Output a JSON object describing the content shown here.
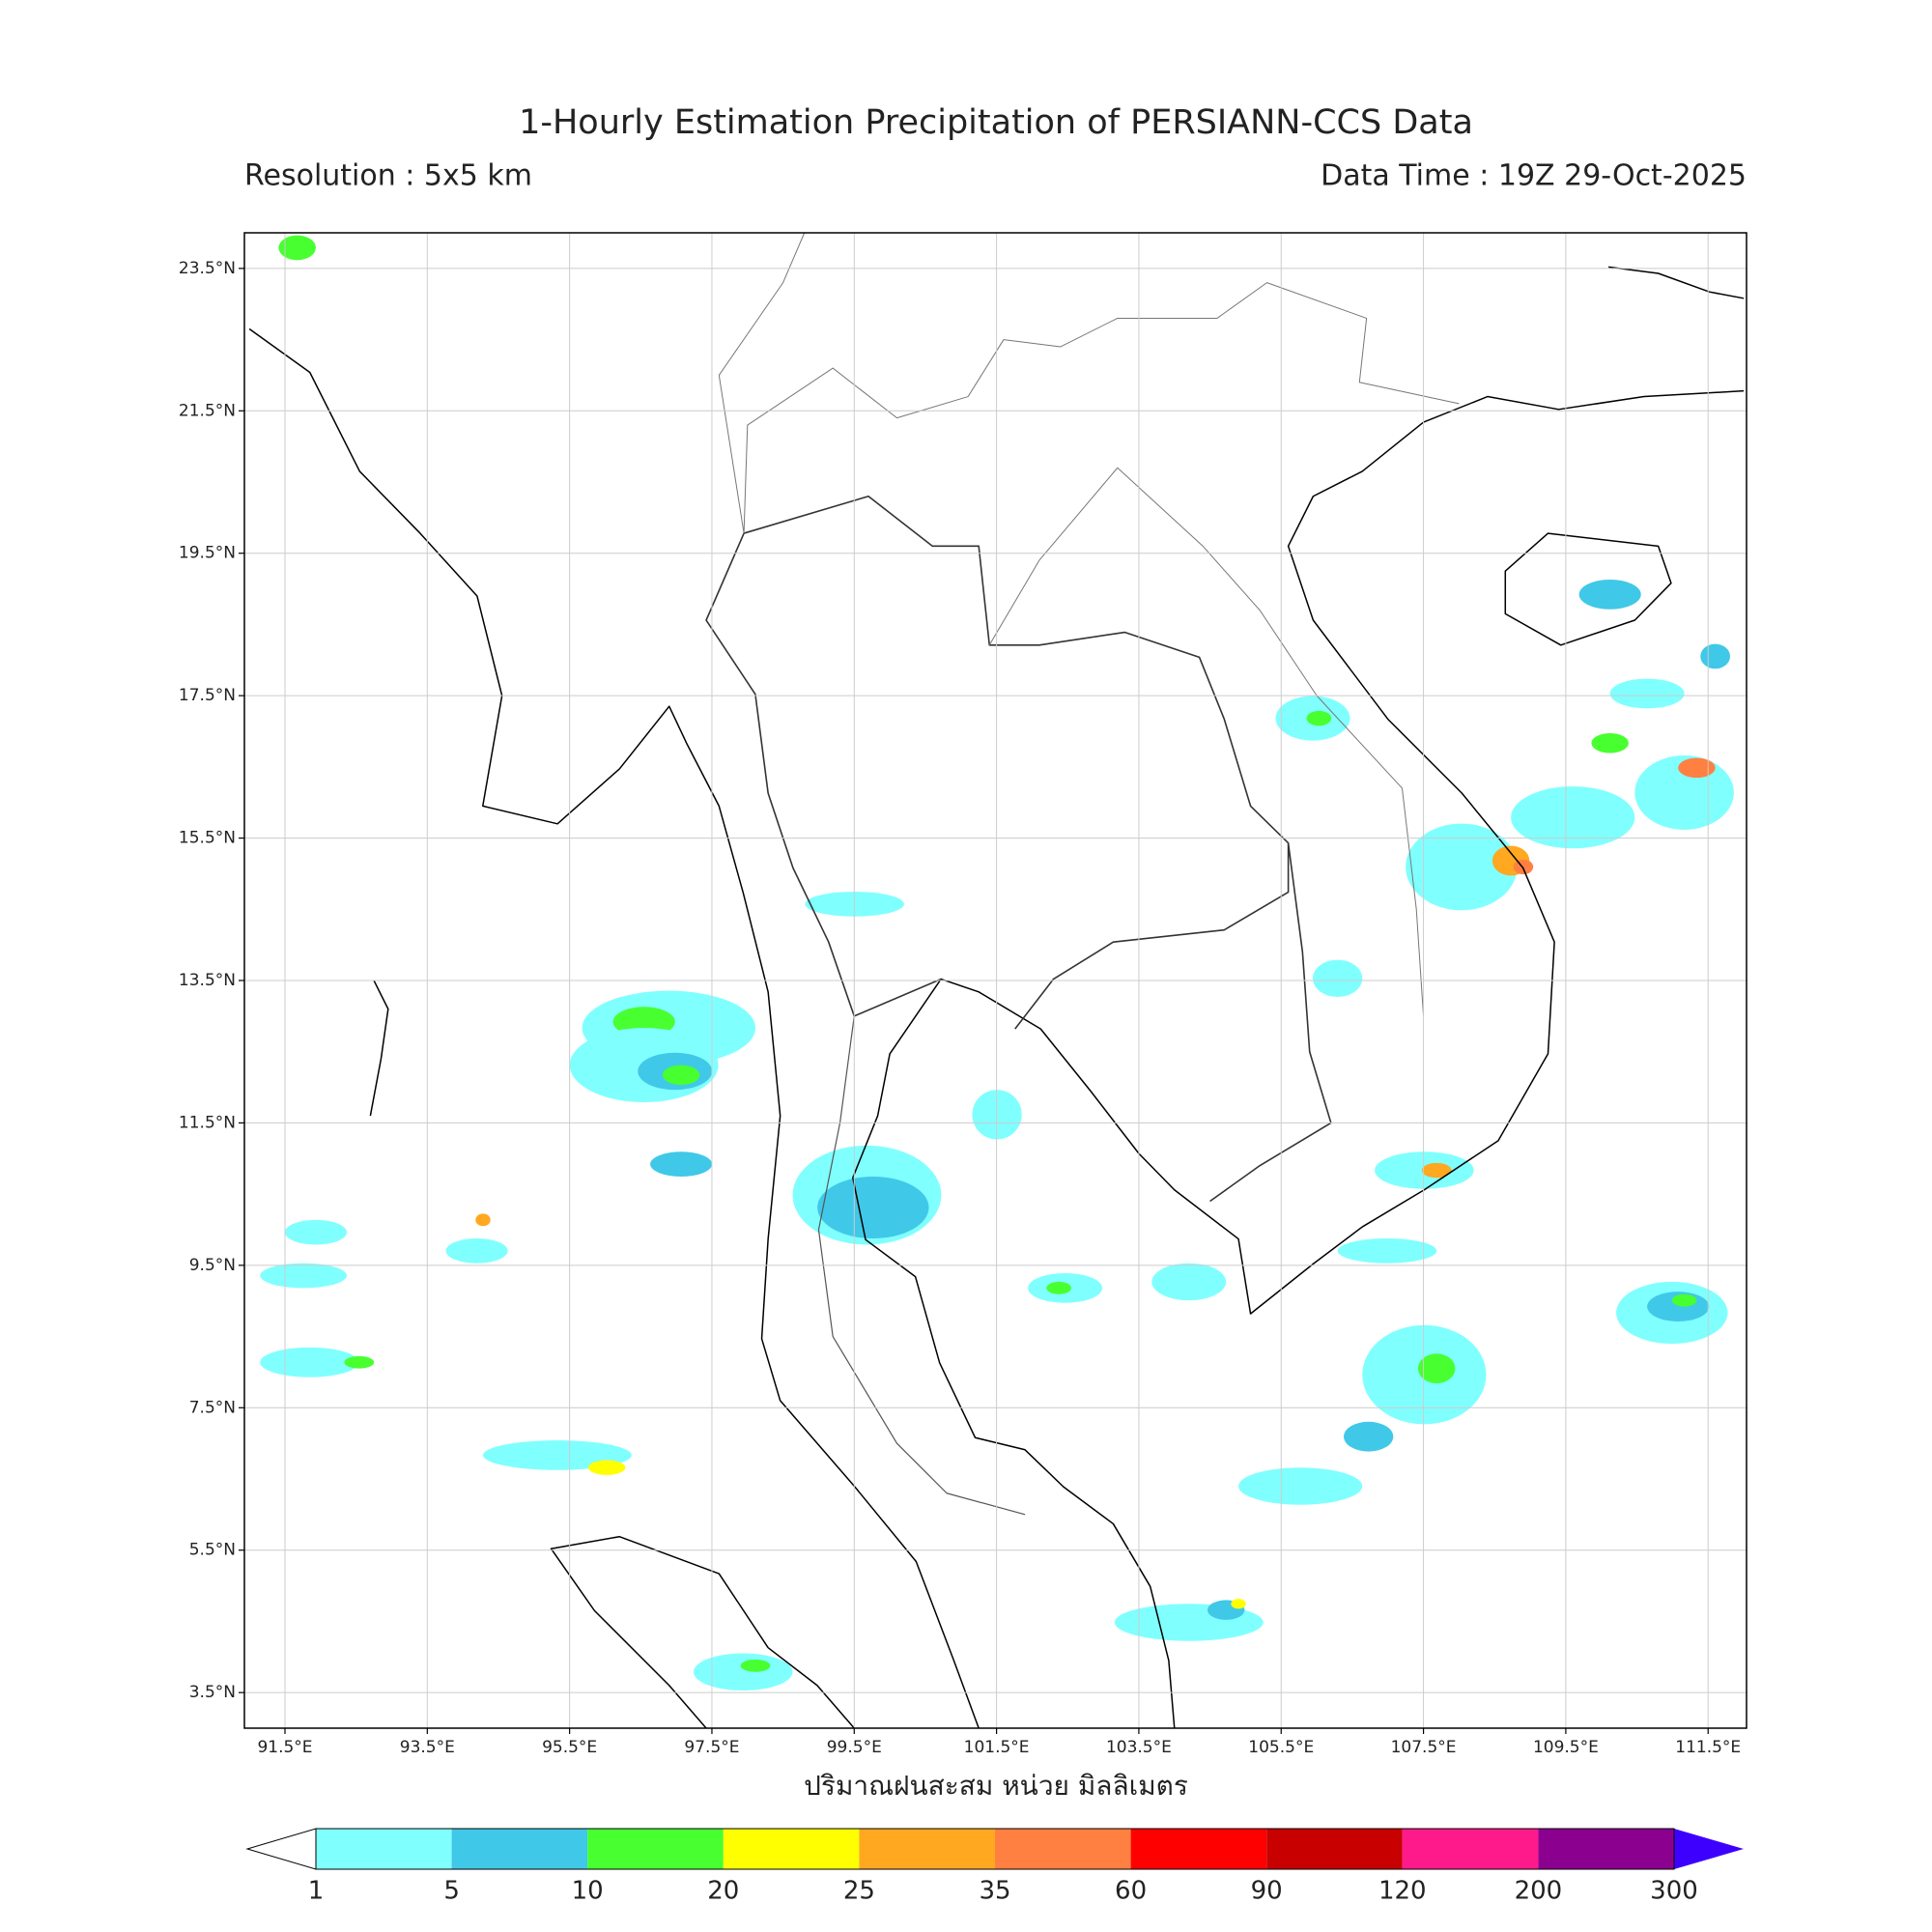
{
  "map": {
    "title": "1-Hourly Estimation Precipitation of PERSIANN-CCS Data",
    "resolution": "Resolution : 5x5 km",
    "data_time": "Data Time : 19Z 29-Oct-2025",
    "xlabel": "ปริมาณฝนสะสม หน่วย มิลลิเมตร",
    "xlim": [
      90.93,
      112.04
    ],
    "ylim": [
      3.0,
      24.0
    ],
    "grid": true,
    "xticks": [
      {
        "value": 91.5,
        "label": "91.5°E"
      },
      {
        "value": 93.5,
        "label": "93.5°E"
      },
      {
        "value": 95.5,
        "label": "95.5°E"
      },
      {
        "value": 97.5,
        "label": "97.5°E"
      },
      {
        "value": 99.5,
        "label": "99.5°E"
      },
      {
        "value": 101.5,
        "label": "101.5°E"
      },
      {
        "value": 103.5,
        "label": "103.5°E"
      },
      {
        "value": 105.5,
        "label": "105.5°E"
      },
      {
        "value": 107.5,
        "label": "107.5°E"
      },
      {
        "value": 109.5,
        "label": "109.5°E"
      },
      {
        "value": 111.5,
        "label": "111.5°E"
      }
    ],
    "yticks": [
      {
        "value": 3.5,
        "label": "3.5°N"
      },
      {
        "value": 5.5,
        "label": "5.5°N"
      },
      {
        "value": 7.5,
        "label": "7.5°N"
      },
      {
        "value": 9.5,
        "label": "9.5°N"
      },
      {
        "value": 11.5,
        "label": "11.5°N"
      },
      {
        "value": 13.5,
        "label": "13.5°N"
      },
      {
        "value": 15.5,
        "label": "15.5°N"
      },
      {
        "value": 17.5,
        "label": "17.5°N"
      },
      {
        "value": 19.5,
        "label": "19.5°N"
      },
      {
        "value": 21.5,
        "label": "21.5°N"
      },
      {
        "value": 23.5,
        "label": "23.5°N"
      }
    ],
    "colorbar": {
      "levels": [
        1,
        5,
        10,
        20,
        25,
        35,
        60,
        90,
        120,
        200,
        300
      ],
      "colors": [
        "#80ffff",
        "#40c8e8",
        "#48ff30",
        "#ffff00",
        "#ffa820",
        "#ff8040",
        "#ff0000",
        "#c80000",
        "#ff1a8c",
        "#8c0090"
      ],
      "under_color": "#ffffff",
      "over_color": "#3d00ff"
    }
  }
}
